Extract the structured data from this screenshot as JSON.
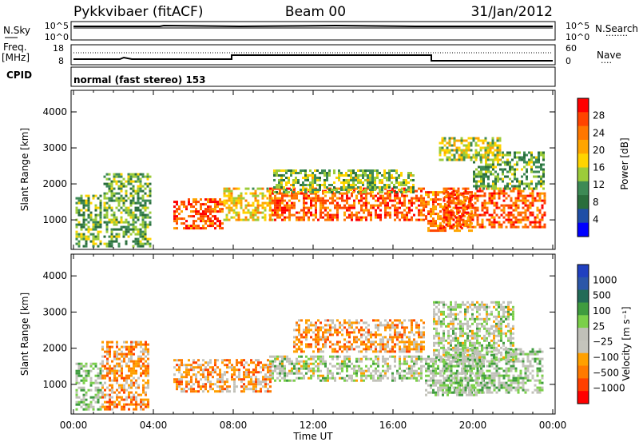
{
  "header": {
    "radar": "Pykkvibaer (fitACF)",
    "beam": "Beam 00",
    "date": "31/Jan/2012"
  },
  "top_panels": {
    "nsky_label": "N.Sky",
    "nsearch_label": "N.Search",
    "nsearch_marker": "········",
    "n_ticks_left": [
      "10^5",
      "10^0"
    ],
    "n_ticks_right": [
      "10^5",
      "10^0"
    ],
    "freq_label_1": "Freq.",
    "freq_label_2": "[MHz]",
    "freq_ticks": [
      "18",
      "8"
    ],
    "nave_label": "Nave",
    "nave_marker": "····",
    "nave_ticks": [
      "60",
      "0"
    ],
    "cpid_label": "CPID",
    "cpid_text": "normal (fast stereo) 153"
  },
  "axes": {
    "x_ticks": [
      "00:00",
      "04:00",
      "08:00",
      "12:00",
      "16:00",
      "20:00",
      "00:00"
    ],
    "xlabel": "Time UT",
    "y_ticks": [
      "1000",
      "2000",
      "3000",
      "4000"
    ],
    "ylabel": "Slant Range [km]"
  },
  "colorbars": {
    "power": {
      "label": "Power [dB]",
      "ticks": [
        "28",
        "24",
        "20",
        "16",
        "12",
        "8",
        "4"
      ],
      "colors": [
        "#ff0000",
        "#ff4400",
        "#ff7700",
        "#ffa500",
        "#ffd400",
        "#9ccc3a",
        "#3d8a55",
        "#2a6e3c",
        "#1f4ea6",
        "#0000ff"
      ]
    },
    "velocity": {
      "label": "Velocity [m s⁻¹]",
      "ticks": [
        "1000",
        "500",
        "100",
        "25",
        "−25",
        "−100",
        "−500",
        "−1000"
      ],
      "colors": [
        "#2040c0",
        "#2b56a8",
        "#226b57",
        "#3f9c3f",
        "#7bd04a",
        "#c0c0b8",
        "#c4c4bc",
        "#ffa000",
        "#ff7a00",
        "#ff4000",
        "#ff0000"
      ]
    }
  },
  "chart_data": {
    "type": "heatmap",
    "title": "Pykkvibaer (fitACF)",
    "xlabel": "Time UT",
    "ylabel": "Slant Range [km]",
    "xlim": [
      "00:00",
      "24:00"
    ],
    "ylim": [
      180,
      4600
    ],
    "panels": [
      {
        "name": "Power [dB]",
        "colorbar_range": [
          0,
          32
        ],
        "regions": [
          {
            "t": [
              0.1,
              1.4
            ],
            "r": [
              300,
              1700
            ],
            "value": 12
          },
          {
            "t": [
              1.5,
              3.8
            ],
            "r": [
              300,
              2300
            ],
            "value": 12
          },
          {
            "t": [
              5.0,
              7.5
            ],
            "r": [
              800,
              1600
            ],
            "value": 26
          },
          {
            "t": [
              7.5,
              10.0
            ],
            "r": [
              1000,
              1900
            ],
            "value": 18
          },
          {
            "t": [
              9.8,
              17.6
            ],
            "r": [
              1000,
              1900
            ],
            "value": 26
          },
          {
            "t": [
              10.0,
              17.0
            ],
            "r": [
              1800,
              2400
            ],
            "value": 14
          },
          {
            "t": [
              17.6,
              20.0
            ],
            "r": [
              700,
              1800
            ],
            "value": 24
          },
          {
            "t": [
              18.5,
              23.6
            ],
            "r": [
              800,
              1900
            ],
            "value": 26
          },
          {
            "t": [
              20.0,
              23.5
            ],
            "r": [
              1900,
              2900
            ],
            "value": 12
          },
          {
            "t": [
              18.3,
              21.4
            ],
            "r": [
              2700,
              3300
            ],
            "value": 16
          }
        ]
      },
      {
        "name": "Velocity [m s⁻¹]",
        "colorbar_range": [
          -1250,
          1250
        ],
        "regions": [
          {
            "t": [
              0.1,
              1.4
            ],
            "r": [
              300,
              1600
            ],
            "value": 100
          },
          {
            "t": [
              1.4,
              3.8
            ],
            "r": [
              300,
              2200
            ],
            "value": -500
          },
          {
            "t": [
              5.0,
              9.9
            ],
            "r": [
              800,
              1700
            ],
            "value": -500
          },
          {
            "t": [
              9.8,
              17.6
            ],
            "r": [
              1100,
              1800
            ],
            "value": 0
          },
          {
            "t": [
              11.0,
              17.6
            ],
            "r": [
              1900,
              2800
            ],
            "value": -500
          },
          {
            "t": [
              17.6,
              20.5
            ],
            "r": [
              700,
              1800
            ],
            "value": 100
          },
          {
            "t": [
              18.5,
              23.5
            ],
            "r": [
              800,
              2000
            ],
            "value": 100
          },
          {
            "t": [
              18.0,
              22.0
            ],
            "r": [
              1700,
              3300
            ],
            "value": 0
          }
        ]
      }
    ]
  }
}
